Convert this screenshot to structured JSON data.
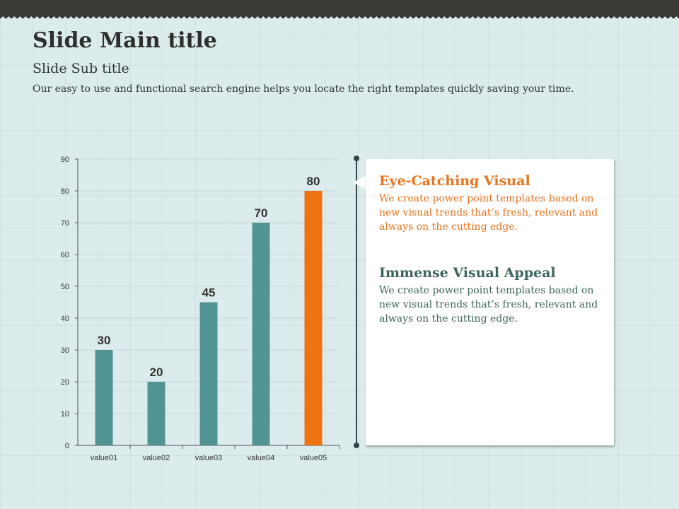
{
  "slide": {
    "title": "Slide Main title",
    "subtitle": "Slide Sub title",
    "description": "Our easy to use and functional search engine helps you locate the right templates quickly saving your time."
  },
  "card": {
    "items": [
      {
        "heading": "Eye-Catching Visual",
        "text": "We create power point templates based on new visual trends that’s fresh, relevant and always on the cutting edge.",
        "color": "#e8731c"
      },
      {
        "heading": "Immense Visual Appeal",
        "text": "We create power point templates based on new visual trends that’s fresh, relevant and always on the cutting edge.",
        "color": "#3d6460"
      }
    ]
  },
  "chart_data": {
    "type": "bar",
    "categories": [
      "value01",
      "value02",
      "value03",
      "value04",
      "value05"
    ],
    "values": [
      30,
      20,
      45,
      70,
      80
    ],
    "data_labels": [
      "30",
      "20",
      "45",
      "70",
      "80"
    ],
    "colors": [
      "#529393",
      "#529393",
      "#529393",
      "#529393",
      "#ee720f"
    ],
    "ylim": [
      0,
      90
    ],
    "yticks": [
      "0",
      "10",
      "20",
      "30",
      "40",
      "50",
      "60",
      "70",
      "80",
      "90"
    ],
    "grid": true,
    "title": "",
    "xlabel": "",
    "ylabel": ""
  }
}
